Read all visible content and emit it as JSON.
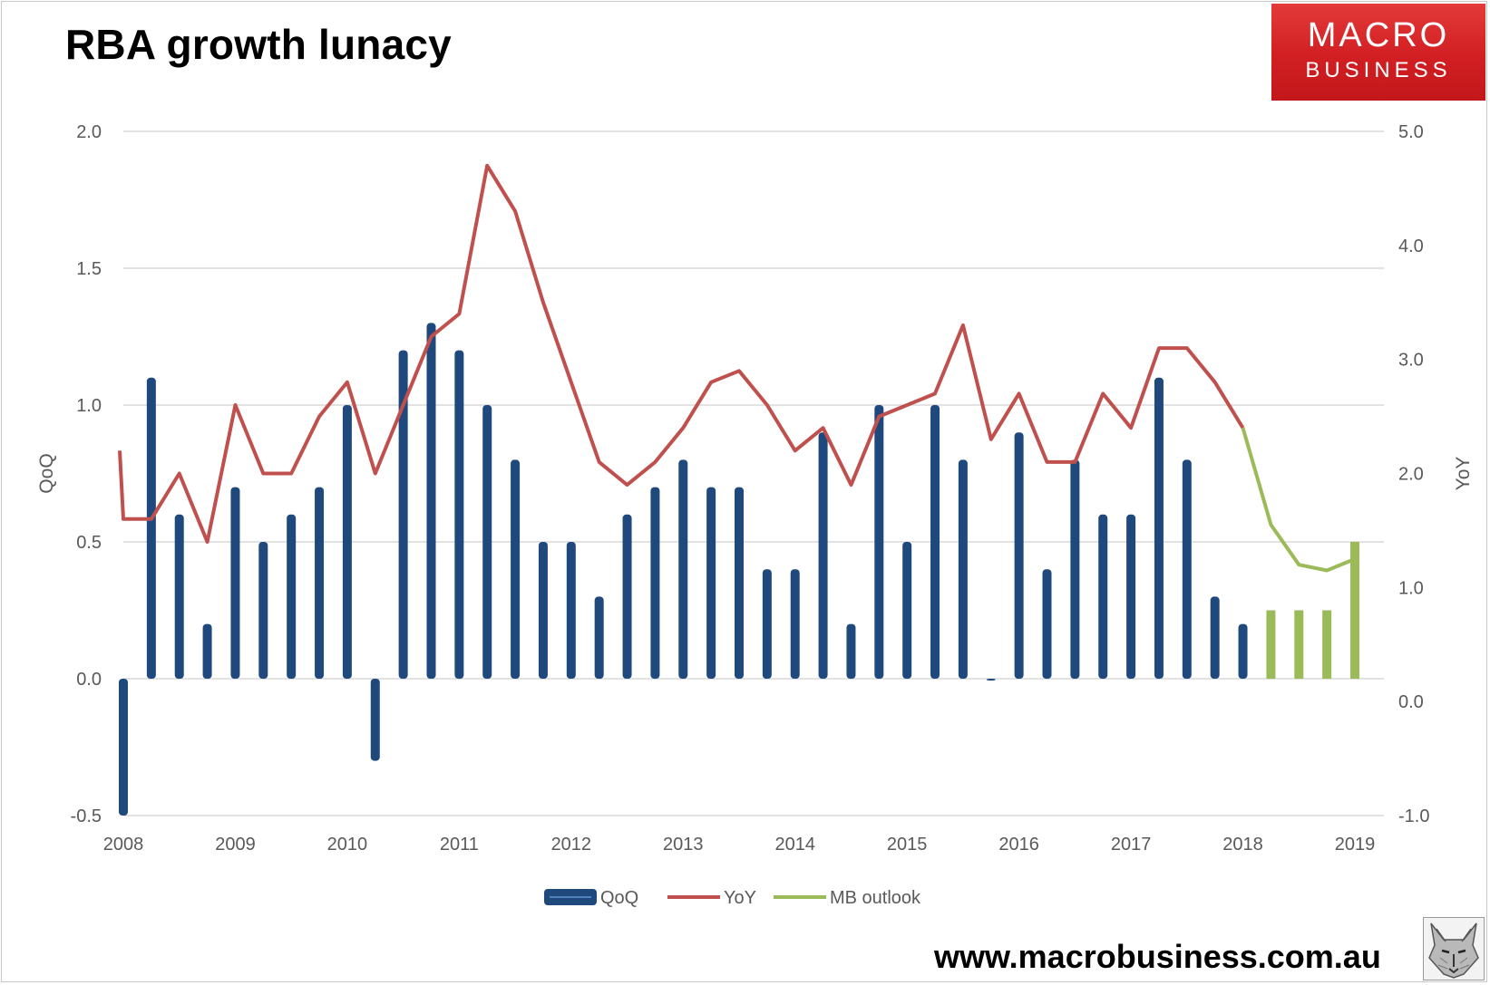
{
  "header": {
    "title": "RBA growth lunacy",
    "logo_line1": "MACRO",
    "logo_line2": "BUSINESS"
  },
  "footer": {
    "url": "www.macrobusiness.com.au"
  },
  "colors": {
    "bar": "#1f497d",
    "yoy": "#c0504d",
    "outlook": "#9bbb59",
    "grid": "#d9d9d9",
    "text": "#595959"
  },
  "chart_data": {
    "type": "bar+line",
    "title": "RBA growth lunacy",
    "xlabel": "",
    "ylabel": "QoQ",
    "y2label": "YoY",
    "ylim": [
      -0.5,
      2.0
    ],
    "y2lim": [
      -1.0,
      5.0
    ],
    "yticks": [
      "2.0",
      "1.5",
      "1.0",
      "0.5",
      "0.0",
      "-0.5"
    ],
    "y2ticks": [
      "5.0",
      "4.0",
      "3.0",
      "2.0",
      "1.0",
      "0.0",
      "-1.0"
    ],
    "xticks": [
      "2008",
      "2009",
      "2010",
      "2011",
      "2012",
      "2013",
      "2014",
      "2015",
      "2016",
      "2017",
      "2018",
      "2019"
    ],
    "legend": [
      "QoQ",
      "YoY",
      "MB outlook"
    ],
    "legend_position": "bottom",
    "x": [
      2008.0,
      2008.25,
      2008.5,
      2008.75,
      2009.0,
      2009.25,
      2009.5,
      2009.75,
      2010.0,
      2010.25,
      2010.5,
      2010.75,
      2011.0,
      2011.25,
      2011.5,
      2011.75,
      2012.0,
      2012.25,
      2012.5,
      2012.75,
      2013.0,
      2013.25,
      2013.5,
      2013.75,
      2014.0,
      2014.25,
      2014.5,
      2014.75,
      2015.0,
      2015.25,
      2015.5,
      2015.75,
      2016.0,
      2016.25,
      2016.5,
      2016.75,
      2017.0,
      2017.25,
      2017.5,
      2017.75,
      2018.0,
      2018.25,
      2018.5,
      2018.75,
      2019.0
    ],
    "series": [
      {
        "name": "QoQ",
        "kind": "bar",
        "values": [
          -0.5,
          1.1,
          0.6,
          0.2,
          0.7,
          0.5,
          0.6,
          0.7,
          1.0,
          -0.3,
          1.2,
          1.3,
          1.2,
          1.0,
          0.8,
          0.5,
          0.5,
          0.3,
          0.6,
          0.7,
          0.8,
          0.7,
          0.7,
          0.4,
          0.4,
          0.9,
          0.2,
          1.0,
          0.5,
          1.0,
          0.8,
          0.0,
          0.9,
          0.4,
          0.8,
          0.6,
          0.6,
          1.1,
          0.8,
          0.3,
          0.2,
          null,
          null,
          null,
          null
        ]
      },
      {
        "name": "YoY",
        "kind": "line",
        "axis": "right",
        "values": [
          1.6,
          1.6,
          2.0,
          1.4,
          2.6,
          2.0,
          2.0,
          2.5,
          2.8,
          2.0,
          2.6,
          3.2,
          3.4,
          4.7,
          4.3,
          3.5,
          2.8,
          2.1,
          1.9,
          2.1,
          2.4,
          2.8,
          2.9,
          2.6,
          2.2,
          2.4,
          1.9,
          2.5,
          2.6,
          2.7,
          3.3,
          2.3,
          2.7,
          2.1,
          2.1,
          2.7,
          2.4,
          3.1,
          3.1,
          2.8,
          2.4,
          null,
          null,
          null,
          null
        ]
      },
      {
        "name": "MB outlook",
        "kind": "bar+line",
        "bar_values": [
          null,
          null,
          null,
          null,
          null,
          null,
          null,
          null,
          null,
          null,
          null,
          null,
          null,
          null,
          null,
          null,
          null,
          null,
          null,
          null,
          null,
          null,
          null,
          null,
          null,
          null,
          null,
          null,
          null,
          null,
          null,
          null,
          null,
          null,
          null,
          null,
          null,
          null,
          null,
          null,
          null,
          0.25,
          0.25,
          0.25,
          0.5
        ],
        "line_values": [
          null,
          null,
          null,
          null,
          null,
          null,
          null,
          null,
          null,
          null,
          null,
          null,
          null,
          null,
          null,
          null,
          null,
          null,
          null,
          null,
          null,
          null,
          null,
          null,
          null,
          null,
          null,
          null,
          null,
          null,
          null,
          null,
          null,
          null,
          null,
          null,
          null,
          null,
          null,
          null,
          2.4,
          1.55,
          1.2,
          1.15,
          1.25
        ]
      }
    ]
  }
}
